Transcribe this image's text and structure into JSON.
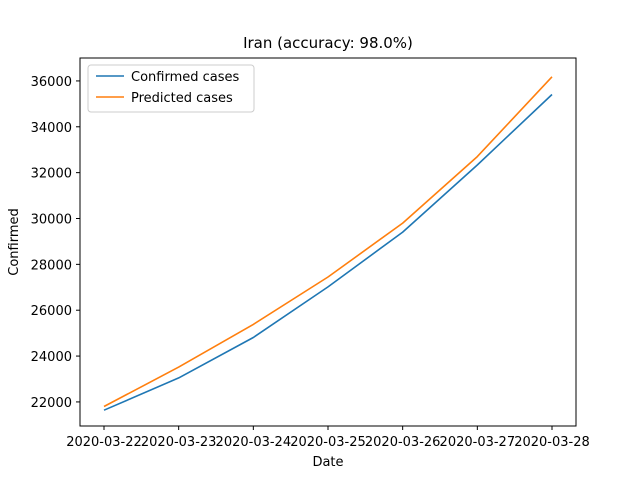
{
  "chart_data": {
    "type": "line",
    "title": "Iran (accuracy: 98.0%)",
    "xlabel": "Date",
    "ylabel": "Confirmed",
    "categories": [
      "2020-03-22",
      "2020-03-23",
      "2020-03-24",
      "2020-03-25",
      "2020-03-26",
      "2020-03-27",
      "2020-03-28"
    ],
    "series": [
      {
        "name": "Confirmed cases",
        "color": "#1f77b4",
        "values": [
          21638,
          23049,
          24811,
          27017,
          29406,
          32332,
          35408
        ]
      },
      {
        "name": "Predicted cases",
        "color": "#ff7f0e",
        "values": [
          21800,
          23520,
          25380,
          27450,
          29800,
          32700,
          36180
        ]
      }
    ],
    "ylim": [
      20950,
      37000
    ],
    "yticks": [
      22000,
      24000,
      26000,
      28000,
      30000,
      32000,
      34000,
      36000
    ],
    "grid": false,
    "legend_position": "top-left"
  }
}
